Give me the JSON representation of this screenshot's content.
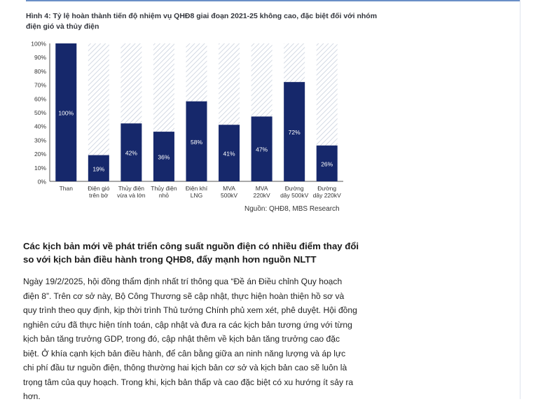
{
  "figure": {
    "caption": "Hình 4: Tỷ lệ hoàn thành tiến độ nhiệm vụ QHĐ8 giai đoạn 2021-25 không cao, đặc biệt đối với nhóm điện gió và thủy điện",
    "source": "Nguồn: QHĐ8, MBS Research"
  },
  "chart_data": {
    "type": "bar",
    "categories": [
      [
        "Than"
      ],
      [
        "Điện gió",
        "trên bờ"
      ],
      [
        "Thủy điện",
        "vừa và lớn"
      ],
      [
        "Thủy điện",
        "nhỏ"
      ],
      [
        "Điện khí",
        "LNG"
      ],
      [
        "MVA",
        "500kV"
      ],
      [
        "MVA",
        "220kV"
      ],
      [
        "Đường",
        "dây 500kV"
      ],
      [
        "Đường",
        "dây 220kV"
      ]
    ],
    "values": [
      100,
      19,
      42,
      36,
      58,
      41,
      47,
      72,
      26
    ],
    "data_labels": [
      "100%",
      "19%",
      "42%",
      "36%",
      "58%",
      "41%",
      "47%",
      "72%",
      "26%"
    ],
    "yticks": [
      "0%",
      "10%",
      "20%",
      "30%",
      "40%",
      "50%",
      "60%",
      "70%",
      "80%",
      "90%",
      "100%"
    ],
    "ylim": [
      0,
      100
    ],
    "bar_color": "#16286b",
    "background_pattern": "diagonal-hatch",
    "grid": false
  },
  "article": {
    "heading": "Các kịch bản mới về phát triển công suất nguồn điện có nhiều điểm thay đổi so với kịch bản điều hành trong QHĐ8, đẩy mạnh hơn nguồn NLTT",
    "paragraph": "Ngày 19/2/2025, hội đồng thẩm định nhất trí thông qua “Đề án Điều chỉnh Quy hoạch điện 8”. Trên cơ sở này, Bộ Công Thương sẽ cập nhật, thực hiện hoàn thiện hồ sơ và quy trình theo quy định, kịp thời trình Thủ tướng Chính phủ xem xét, phê duyệt. Hội đồng nghiên cứu đã thực hiện tính toán, cập nhật và đưa ra các kịch bản tương ứng với từng kịch bản tăng trưởng GDP, trong đó, cập nhật thêm về kịch bản tăng trưởng cao đặc biệt.  Ở khía cạnh kịch bản điều hành, để cân bằng giữa an ninh năng lượng và áp lực chi phí đầu tư nguồn điện, thông thường hai kịch bản cơ sở và kịch bản cao sẽ luôn là trọng tâm của quy hoạch. Trong khi, kịch bản thấp và cao đặc biệt có xu hướng ít sảy ra hơn."
  }
}
